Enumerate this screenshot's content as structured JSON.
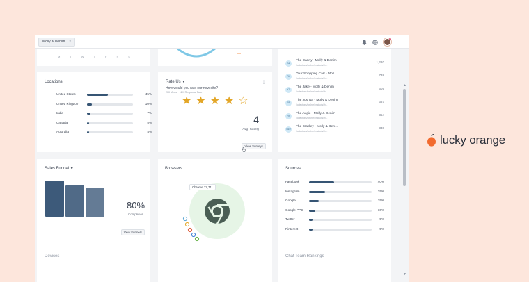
{
  "tab": {
    "label": "Molly & Denim",
    "close": "×"
  },
  "calendar": {
    "days": [
      "M",
      "T",
      "W",
      "T",
      "F",
      "S",
      "S"
    ]
  },
  "locations": {
    "title": "Locations",
    "rows": [
      {
        "country": "United States",
        "pct": "45%",
        "value": 45,
        "flag": "us"
      },
      {
        "country": "United Kingdom",
        "pct": "10%",
        "value": 10,
        "flag": "uk"
      },
      {
        "country": "India",
        "pct": "7%",
        "value": 7,
        "flag": "in"
      },
      {
        "country": "Canada",
        "pct": "5%",
        "value": 5,
        "flag": "ca"
      },
      {
        "country": "Australia",
        "pct": "4%",
        "value": 4,
        "flag": "au"
      }
    ]
  },
  "rate_us": {
    "title": "Rate Us",
    "question": "How would you rate our new site?",
    "meta": "200 Views · 11% Response Rate",
    "stars_filled": 4,
    "stars_total": 5,
    "avg_value": "4",
    "avg_label": "Avg. Rating",
    "view_button": "View Surveys"
  },
  "recordings": {
    "rows": [
      {
        "badge": "B1",
        "title": "The Danny - Molly & Denim",
        "url": "/collections/for-her/products/th...",
        "count": "1,220"
      },
      {
        "badge": "R4",
        "title": "Your Shopping Cart - Moll...",
        "url": "/collections/for-her/products/th...",
        "count": "738"
      },
      {
        "badge": "K7",
        "title": "The Jake - Molly & Denim",
        "url": "/collections/for-her/products/th...",
        "count": "605"
      },
      {
        "badge": "R5",
        "title": "The Joshua - Molly & Denim",
        "url": "/collections/for-her/products/th...",
        "count": "387"
      },
      {
        "badge": "R9",
        "title": "The Augie - Molly & Denim",
        "url": "/collections/for-her/products/th...",
        "count": "354"
      },
      {
        "badge": "B10",
        "title": "The Bradley - Molly & Den...",
        "url": "/collections/for-her/products/th...",
        "count": "338"
      }
    ]
  },
  "sales_funnel": {
    "title": "Sales Funnel",
    "steps": [
      100,
      87,
      78
    ],
    "completion_pct": "80%",
    "completion_label": "Completion",
    "view_button": "View Funnels"
  },
  "browsers": {
    "title": "Browsers",
    "tooltip": "Chrome  72,711",
    "top_browser": "chrome-icon"
  },
  "sources": {
    "title": "Sources",
    "rows": [
      {
        "name": "Facebook",
        "pct": "40%",
        "value": 40
      },
      {
        "name": "Instagram",
        "pct": "25%",
        "value": 25
      },
      {
        "name": "Google",
        "pct": "15%",
        "value": 15
      },
      {
        "name": "Google PPC",
        "pct": "10%",
        "value": 10
      },
      {
        "name": "Twitter",
        "pct": "5%",
        "value": 5
      },
      {
        "name": "Pinterest",
        "pct": "5%",
        "value": 5
      }
    ]
  },
  "devices": {
    "title": "Devices"
  },
  "chat": {
    "title": "Chat Team Rankings"
  },
  "brand": {
    "name": "lucky orange"
  },
  "colors": {
    "bar": "#365574",
    "star": "#e3a627",
    "chrome_bg": "#e6f5e6",
    "brand_orange": "#f26a2e",
    "page_bg": "#fde6dc"
  }
}
